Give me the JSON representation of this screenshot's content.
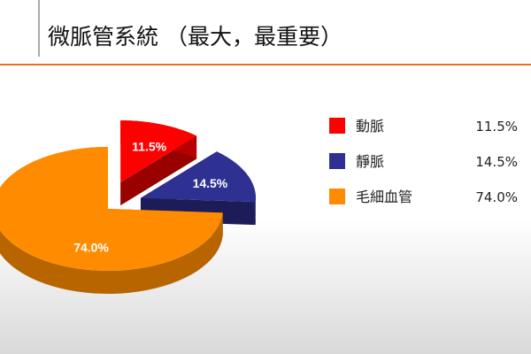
{
  "chart_data": {
    "type": "pie",
    "title": "微脈管系統 （最大，最重要）",
    "categories": [
      "動脈",
      "靜脈",
      "毛細血管"
    ],
    "values": [
      11.5,
      14.5,
      74.0
    ],
    "value_labels": [
      "11.5%",
      "14.5%",
      "74.0%"
    ],
    "colors": [
      "#ff0000",
      "#2e3192",
      "#ff8c00"
    ],
    "legend": "right"
  }
}
